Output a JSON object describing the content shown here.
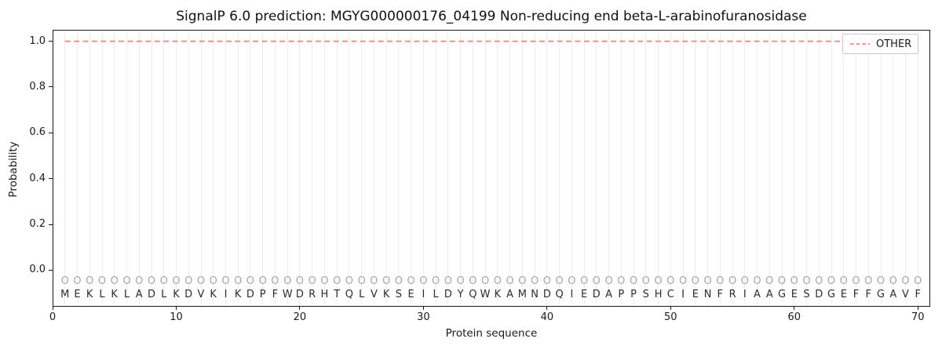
{
  "chart_data": {
    "type": "line",
    "title": "SignalP 6.0 prediction: MGYG000000176_04199 Non-reducing end beta-L-arabinofuranosidase",
    "xlabel": "Protein sequence",
    "ylabel": "Probability",
    "xlim": [
      0,
      71
    ],
    "ylim": [
      -0.16,
      1.05
    ],
    "xticks": [
      0,
      10,
      20,
      30,
      40,
      50,
      60,
      70
    ],
    "xtick_labels": [
      "0",
      "10",
      "20",
      "30",
      "40",
      "50",
      "60",
      "70"
    ],
    "yticks": [
      0.0,
      0.2,
      0.4,
      0.6,
      0.8,
      1.0
    ],
    "ytick_labels": [
      "0.0",
      "0.2",
      "0.4",
      "0.6",
      "0.8",
      "1.0"
    ],
    "grid": {
      "vertical_per_residue": true,
      "horizontal": false,
      "color": "#ededed"
    },
    "series": [
      {
        "name": "OTHER",
        "linestyle": "dashed",
        "color": "#f28080",
        "x_start": 1,
        "x_end": 70,
        "y_constant": 1.0
      }
    ],
    "sequence": "MEKLKLADLKDVKIKDPFWDRHTQLVKSEILDYQWKAMNDQIEDAPPSHCIENFRIAAGESDGEFFGAVF",
    "n_residues": 70,
    "per_residue_marker": "O",
    "legend": {
      "position": "upper-right",
      "entries": [
        {
          "label": "OTHER",
          "color": "#f28080",
          "linestyle": "dashed"
        }
      ]
    },
    "colors": {
      "line": "#f28080",
      "grid": "#ededed",
      "marker": "#a6a6a6",
      "residue_letter": "#2e2e2e",
      "spine": "#1a1a1a",
      "tick_label": "#1a1a1a"
    }
  }
}
